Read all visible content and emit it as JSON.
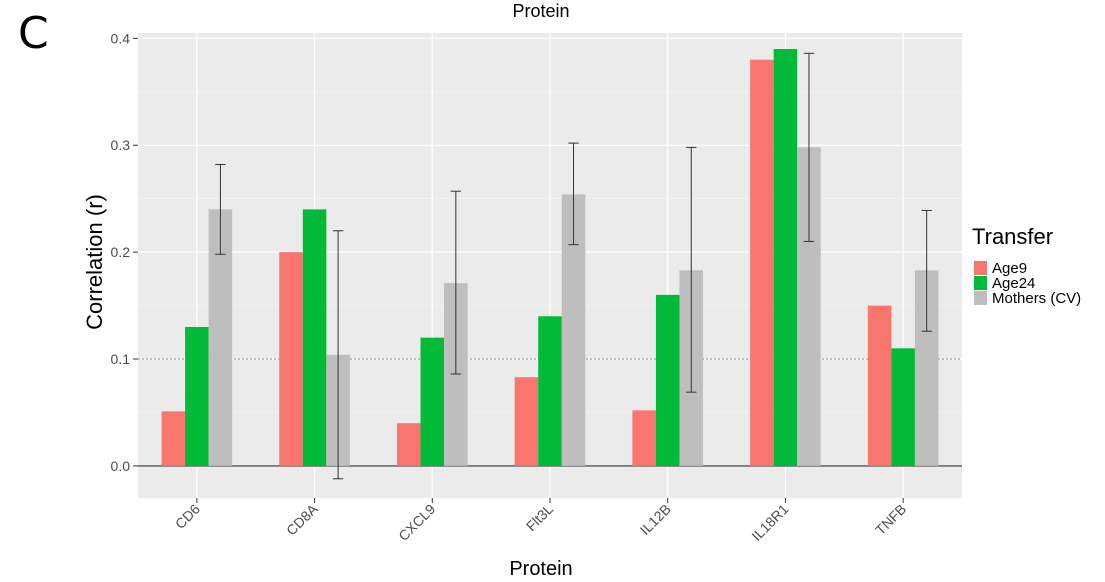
{
  "panel_letter": "C",
  "chart_data": {
    "type": "bar",
    "title": "Protein",
    "xlabel": "Protein",
    "ylabel": "Correlation (r)",
    "ylim": [
      -0.03,
      0.405
    ],
    "yticks": [
      "0.0",
      "0.1",
      "0.2",
      "0.3",
      "0.4"
    ],
    "reference_line": 0.1,
    "grid": true,
    "legend": {
      "title": "Transfer",
      "position": "right"
    },
    "categories": [
      "CD6",
      "CD8A",
      "CXCL9",
      "Flt3L",
      "IL12B",
      "IL18R1",
      "TNFB"
    ],
    "series": [
      {
        "name": "Age9",
        "color": "#F8766D",
        "values": [
          0.051,
          0.2,
          0.04,
          0.083,
          0.052,
          0.38,
          0.15
        ]
      },
      {
        "name": "Age24",
        "color": "#00BA38",
        "values": [
          0.13,
          0.24,
          0.12,
          0.14,
          0.16,
          0.39,
          0.11
        ]
      },
      {
        "name": "Mothers (CV)",
        "color": "#BEBEBE",
        "values": [
          0.24,
          0.104,
          0.171,
          0.254,
          0.183,
          0.298,
          0.183
        ],
        "err_low": [
          0.198,
          -0.012,
          0.086,
          0.207,
          0.069,
          0.21,
          0.126
        ],
        "err_high": [
          0.282,
          0.22,
          0.257,
          0.302,
          0.298,
          0.386,
          0.239
        ]
      }
    ]
  }
}
